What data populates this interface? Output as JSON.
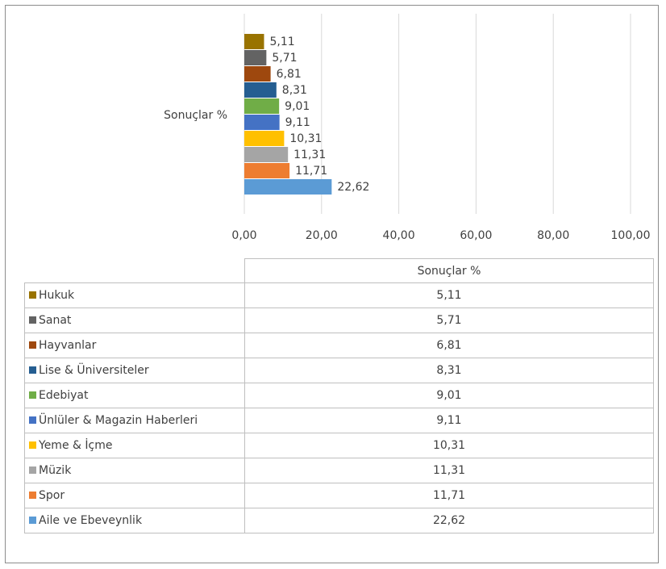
{
  "chart_data": {
    "type": "bar",
    "orientation": "horizontal",
    "group_label": "Sonuçlar %",
    "categories": [
      "Hukuk",
      "Sanat",
      "Hayvanlar",
      "Lise & Üniversiteler",
      "Edebiyat",
      "Ünlüler & Magazin Haberleri",
      "Yeme & İçme",
      "Müzik",
      "Spor",
      "Aile ve Ebeveynlik"
    ],
    "values": [
      5.11,
      5.71,
      6.81,
      8.31,
      9.01,
      9.11,
      10.31,
      11.31,
      11.71,
      22.62
    ],
    "value_labels": [
      "5,11",
      "5,71",
      "6,81",
      "8,31",
      "9,01",
      "9,11",
      "10,31",
      "11,31",
      "11,71",
      "22,62"
    ],
    "colors": [
      "#997300",
      "#636363",
      "#9e480e",
      "#255e91",
      "#70ad47",
      "#4472c4",
      "#ffc000",
      "#a5a5a5",
      "#ed7d31",
      "#5b9bd5"
    ],
    "xlim": [
      0,
      100
    ],
    "xticks": [
      0,
      20,
      40,
      60,
      80,
      100
    ],
    "xtick_labels": [
      "0,00",
      "20,00",
      "40,00",
      "60,00",
      "80,00",
      "100,00"
    ],
    "grid": "vertical",
    "title": "",
    "xlabel": "",
    "ylabel": "",
    "data_table": {
      "series_header": "Sonuçlar %",
      "legend_keys": true
    }
  }
}
